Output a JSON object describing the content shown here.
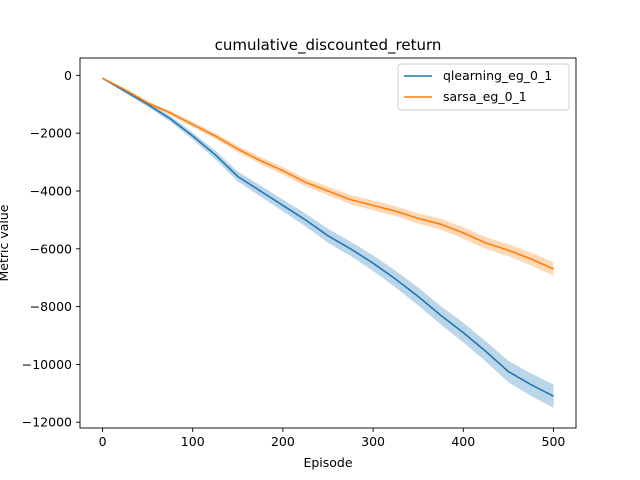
{
  "chart_data": {
    "type": "line",
    "title": "cumulative_discounted_return",
    "xlabel": "Episode",
    "ylabel": "Metric value",
    "xlim": [
      -25,
      525
    ],
    "ylim": [
      -12200,
      600
    ],
    "xticks": [
      0,
      100,
      200,
      300,
      400,
      500
    ],
    "yticks": [
      0,
      -2000,
      -4000,
      -6000,
      -8000,
      -10000,
      -12000
    ],
    "grid": false,
    "legend_position": "top-right",
    "series": [
      {
        "name": "qlearning_eg_0_1",
        "color": "#1f77b4",
        "x": [
          0,
          25,
          50,
          75,
          100,
          125,
          150,
          175,
          200,
          225,
          250,
          275,
          300,
          325,
          350,
          375,
          400,
          425,
          450,
          475,
          500
        ],
        "y": [
          -100,
          -550,
          -1000,
          -1500,
          -2100,
          -2750,
          -3500,
          -4000,
          -4500,
          -5000,
          -5550,
          -6000,
          -6500,
          -7050,
          -7650,
          -8300,
          -8900,
          -9550,
          -10250,
          -10700,
          -11100
        ],
        "band_halfwidth": [
          30,
          60,
          80,
          100,
          120,
          150,
          170,
          190,
          200,
          220,
          240,
          250,
          270,
          290,
          310,
          320,
          340,
          350,
          370,
          390,
          400
        ]
      },
      {
        "name": "sarsa_eg_0_1",
        "color": "#ff7f0e",
        "x": [
          0,
          25,
          50,
          75,
          100,
          125,
          150,
          175,
          200,
          225,
          250,
          275,
          300,
          325,
          350,
          375,
          400,
          425,
          450,
          475,
          500
        ],
        "y": [
          -100,
          -500,
          -950,
          -1300,
          -1700,
          -2100,
          -2550,
          -2950,
          -3300,
          -3700,
          -4000,
          -4300,
          -4500,
          -4700,
          -4950,
          -5150,
          -5450,
          -5800,
          -6050,
          -6350,
          -6700
        ],
        "band_halfwidth": [
          20,
          40,
          55,
          70,
          90,
          100,
          110,
          120,
          130,
          140,
          150,
          160,
          170,
          170,
          180,
          190,
          200,
          205,
          210,
          220,
          230
        ]
      }
    ]
  }
}
